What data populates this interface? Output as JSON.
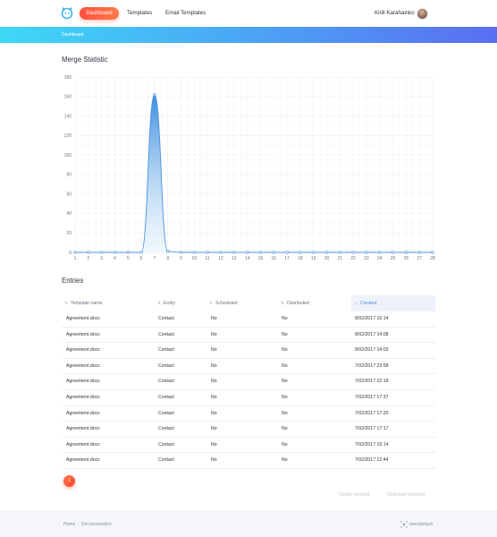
{
  "nav": {
    "active_label": "Dashboard",
    "links": [
      "Templates",
      "Email Templates"
    ],
    "user_name": "Kirill Karahainko"
  },
  "breadcrumb": "Dashboard",
  "chart_section": {
    "title": "Merge Statistic"
  },
  "chart_data": {
    "type": "area",
    "title": "Merge Statistic",
    "xlabel": "",
    "ylabel": "",
    "x": [
      1,
      2,
      3,
      4,
      5,
      6,
      7,
      8,
      9,
      10,
      11,
      12,
      13,
      14,
      15,
      16,
      17,
      18,
      19,
      20,
      21,
      22,
      23,
      24,
      25,
      26,
      27,
      28
    ],
    "x_tick_labels": [
      "1",
      "2",
      "3",
      "4",
      "5",
      "6",
      "7",
      "8",
      "9",
      "10",
      "11",
      "12",
      "13",
      "14",
      "15",
      "16",
      "17",
      "18",
      "19",
      "20",
      "21",
      "22",
      "23",
      "24",
      "25",
      "26",
      "27",
      "28"
    ],
    "series": [
      {
        "values": [
          0,
          0,
          0,
          0,
          0,
          0,
          162,
          1,
          0,
          0,
          0,
          0,
          0,
          0,
          0,
          0,
          0,
          0,
          0,
          0,
          0,
          0,
          0,
          0,
          0,
          0,
          0,
          0
        ]
      }
    ],
    "yticks": [
      0,
      20,
      40,
      60,
      80,
      100,
      120,
      140,
      160,
      180
    ],
    "ylim": [
      0,
      180
    ],
    "xlim": [
      1,
      28
    ],
    "grid": true,
    "colors": {
      "line": "#4a90e2",
      "fill_top": "#3f8fe0",
      "grid": "#eef0f4"
    }
  },
  "entries": {
    "title": "Entries",
    "columns": [
      "Template name",
      "Entity",
      "Scheduled",
      "Distributed",
      "Created"
    ],
    "active_column": "Created",
    "rows": [
      [
        "Agreement.docx",
        "Contact",
        "No",
        "No",
        "8/02/2017 15:14"
      ],
      [
        "Agreement.docx",
        "Contact",
        "No",
        "No",
        "8/02/2017 14:08"
      ],
      [
        "Agreement.docx",
        "Contact",
        "No",
        "No",
        "8/02/2017 14:03"
      ],
      [
        "Agreement.docx",
        "Contact",
        "No",
        "No",
        "7/02/2017 23:58"
      ],
      [
        "Agreement.docx",
        "Contact",
        "No",
        "No",
        "7/02/2017 22:18"
      ],
      [
        "Agreement.docx",
        "Contact",
        "No",
        "No",
        "7/02/2017 17:37"
      ],
      [
        "Agreement.docx",
        "Contact",
        "No",
        "No",
        "7/02/2017 17:20"
      ],
      [
        "Agreement.docx",
        "Contact",
        "No",
        "No",
        "7/02/2017 17:17"
      ],
      [
        "Agreement.docx",
        "Contact",
        "No",
        "No",
        "7/02/2017 15:14"
      ],
      [
        "Agreement.docx",
        "Contact",
        "No",
        "No",
        "7/02/2017 12:44"
      ]
    ],
    "page": "1",
    "delete_label": "Delete selected",
    "download_label": "Download selected"
  },
  "footer": {
    "home": "Home",
    "separator": "·",
    "documentation": "Documentation",
    "brand": "mentalstack"
  },
  "colors": {
    "accent_orange": "#ff5a3c",
    "banner_start": "#3ed8f6",
    "banner_end": "#5a6ef2",
    "active_blue": "#4a8fe8"
  }
}
